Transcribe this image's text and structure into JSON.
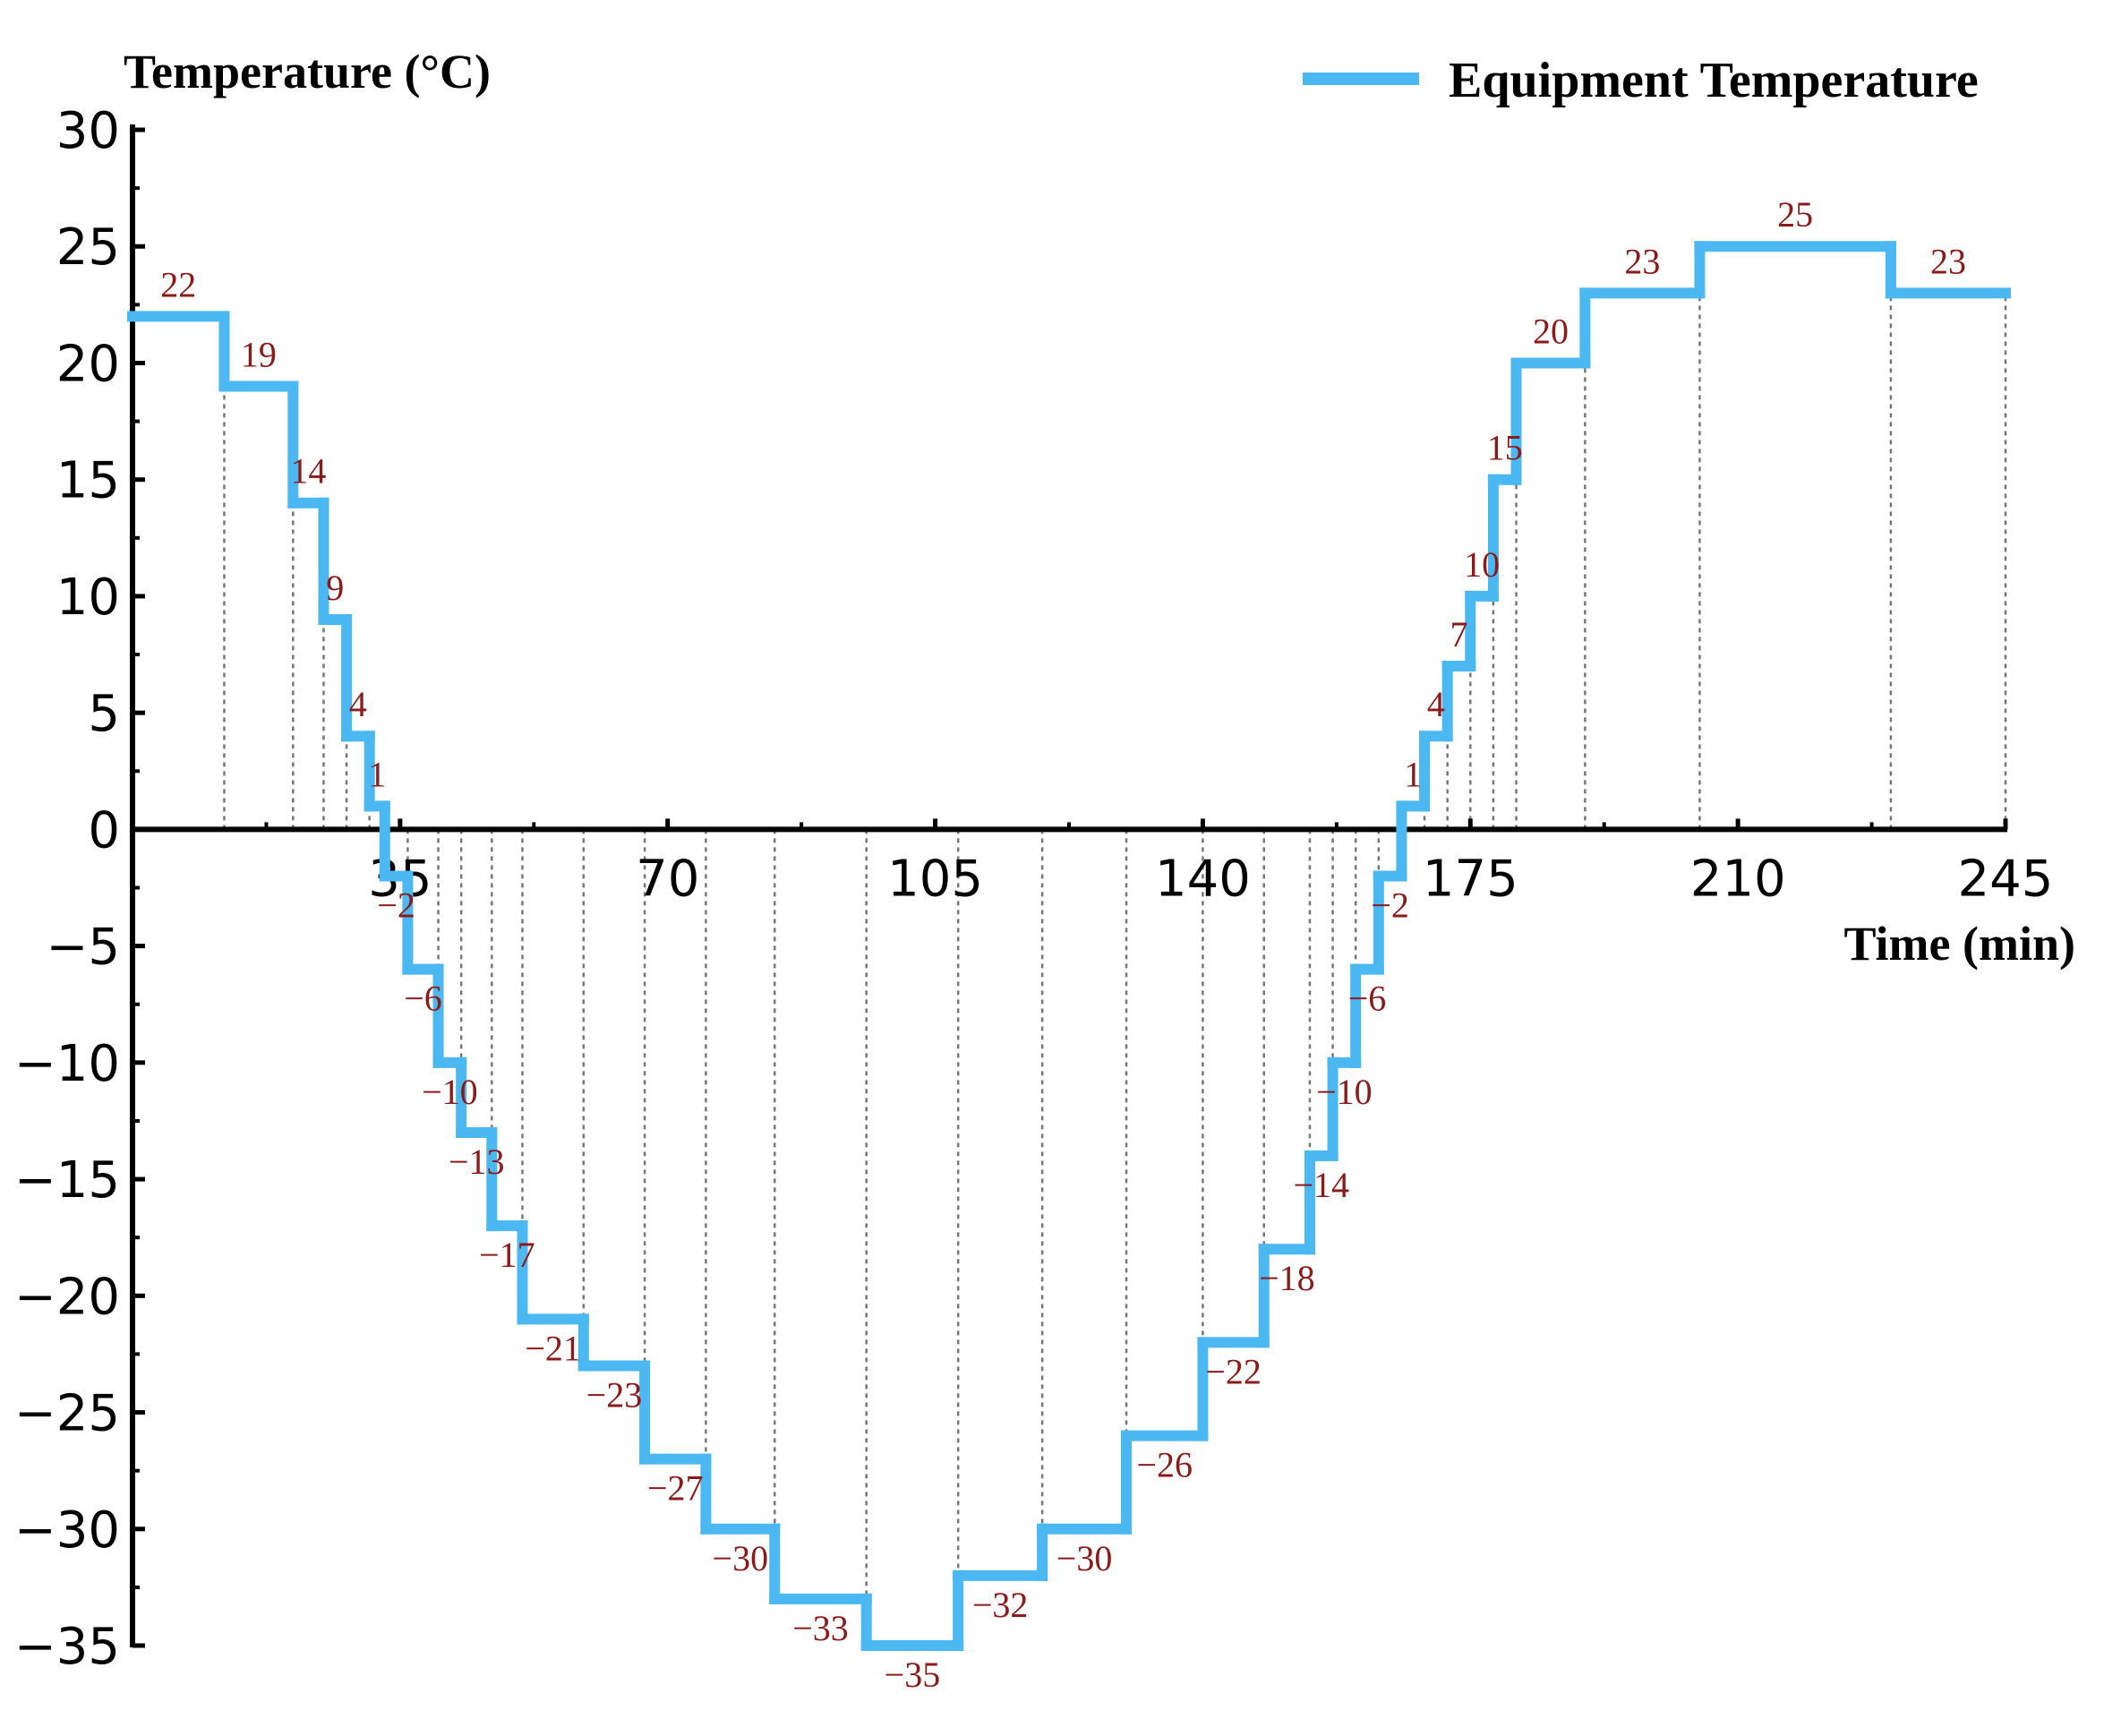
{
  "chart_data": {
    "type": "line",
    "step": true,
    "ylabel": "Temperature (°C)",
    "xlabel": "Time (min)",
    "xlim": [
      0,
      245
    ],
    "ylim": [
      -35,
      30
    ],
    "x_ticks": [
      "35",
      "70",
      "105",
      "140",
      "175",
      "210",
      "245"
    ],
    "y_ticks": [
      "30",
      "25",
      "20",
      "15",
      "10",
      "5",
      "0",
      "−5",
      "−10",
      "−15",
      "−20",
      "−25",
      "−30",
      "−35"
    ],
    "legend_position": "top-right",
    "series": [
      {
        "name": "Equipment Temperature",
        "color": "#4bb8f2",
        "steps": [
          {
            "x0": 0,
            "x1": 12,
            "y": 22,
            "label": "22"
          },
          {
            "x0": 12,
            "x1": 21,
            "y": 19,
            "label": "19"
          },
          {
            "x0": 21,
            "x1": 25,
            "y": 14,
            "label": "14"
          },
          {
            "x0": 25,
            "x1": 28,
            "y": 9,
            "label": "9"
          },
          {
            "x0": 28,
            "x1": 31,
            "y": 4,
            "label": "4"
          },
          {
            "x0": 31,
            "x1": 33,
            "y": 1,
            "label": "1"
          },
          {
            "x0": 33,
            "x1": 36,
            "y": -2,
            "label": "−2"
          },
          {
            "x0": 36,
            "x1": 40,
            "y": -6,
            "label": "−6"
          },
          {
            "x0": 40,
            "x1": 43,
            "y": -10,
            "label": "−10"
          },
          {
            "x0": 43,
            "x1": 47,
            "y": -13,
            "label": "−13"
          },
          {
            "x0": 47,
            "x1": 51,
            "y": -17,
            "label": "−17"
          },
          {
            "x0": 51,
            "x1": 59,
            "y": -21,
            "label": "−21"
          },
          {
            "x0": 59,
            "x1": 67,
            "y": -23,
            "label": "−23"
          },
          {
            "x0": 67,
            "x1": 75,
            "y": -27,
            "label": "−27"
          },
          {
            "x0": 75,
            "x1": 84,
            "y": -30,
            "label": "−30"
          },
          {
            "x0": 84,
            "x1": 96,
            "y": -33,
            "label": "−33"
          },
          {
            "x0": 96,
            "x1": 108,
            "y": -35,
            "label": "−35"
          },
          {
            "x0": 108,
            "x1": 119,
            "y": -32,
            "label": "−32"
          },
          {
            "x0": 119,
            "x1": 130,
            "y": -30,
            "label": "−30"
          },
          {
            "x0": 130,
            "x1": 140,
            "y": -26,
            "label": "−26"
          },
          {
            "x0": 140,
            "x1": 148,
            "y": -22,
            "label": "−22"
          },
          {
            "x0": 148,
            "x1": 154,
            "y": -18,
            "label": "−18"
          },
          {
            "x0": 154,
            "x1": 157,
            "y": -14,
            "label": "−14"
          },
          {
            "x0": 157,
            "x1": 160,
            "y": -10,
            "label": "−10"
          },
          {
            "x0": 160,
            "x1": 163,
            "y": -6,
            "label": "−6"
          },
          {
            "x0": 163,
            "x1": 166,
            "y": -2,
            "label": "−2"
          },
          {
            "x0": 166,
            "x1": 169,
            "y": 1,
            "label": "1"
          },
          {
            "x0": 169,
            "x1": 172,
            "y": 4,
            "label": "4"
          },
          {
            "x0": 172,
            "x1": 175,
            "y": 7,
            "label": "7"
          },
          {
            "x0": 175,
            "x1": 178,
            "y": 10,
            "label": "10"
          },
          {
            "x0": 178,
            "x1": 181,
            "y": 15,
            "label": "15"
          },
          {
            "x0": 181,
            "x1": 190,
            "y": 20,
            "label": "20"
          },
          {
            "x0": 190,
            "x1": 205,
            "y": 23,
            "label": "23"
          },
          {
            "x0": 205,
            "x1": 230,
            "y": 25,
            "label": "25"
          },
          {
            "x0": 230,
            "x1": 245,
            "y": 23,
            "label": "23"
          }
        ]
      }
    ]
  }
}
